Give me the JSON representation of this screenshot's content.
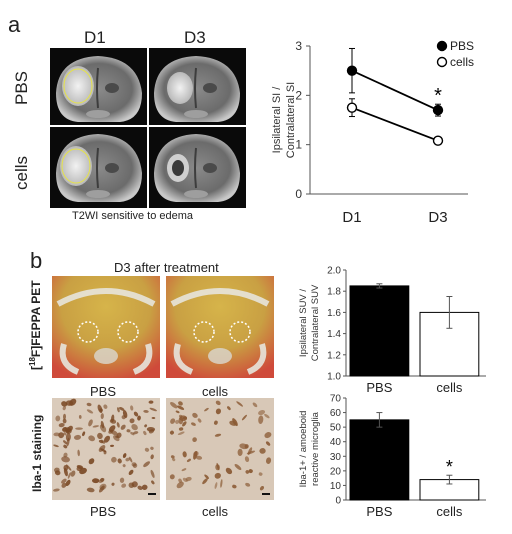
{
  "panel_a": {
    "letter": "a",
    "col_labels": [
      "D1",
      "D3"
    ],
    "row_labels": [
      "PBS",
      "cells"
    ],
    "caption": "T2WI sensitive to edema"
  },
  "panel_b": {
    "letter": "b",
    "pet_title": "D3 after treatment",
    "pet_side_label": "[18F]FEPPA PET",
    "pet_side_label_pre": "[",
    "pet_side_label_sup": "18",
    "pet_side_label_post": "F]FEPPA PET",
    "pet_labels": [
      "PBS",
      "cells"
    ],
    "iba_side_label": "Iba-1 staining",
    "iba_labels": [
      "PBS",
      "cells"
    ]
  },
  "chart_data": [
    {
      "type": "line",
      "x": [
        "D1",
        "D3"
      ],
      "series": [
        {
          "name": "PBS",
          "values": [
            2.5,
            1.7
          ],
          "errors": [
            0.45,
            0.12
          ],
          "marker": "filled"
        },
        {
          "name": "cells",
          "values": [
            1.75,
            1.08
          ],
          "errors": [
            0.18,
            0.07
          ],
          "marker": "open"
        }
      ],
      "ylabel": "Ipsilateral SI /\nContralateral SI",
      "ylabel_lines": [
        "Ipsilateral SI /",
        "Contralateral SI"
      ],
      "yticks": [
        0,
        1,
        2,
        3
      ],
      "ylim": [
        0,
        3
      ],
      "annotation": "*",
      "legend": "top-right"
    },
    {
      "type": "bar",
      "categories": [
        "PBS",
        "cells"
      ],
      "values": [
        1.85,
        1.6
      ],
      "errors": [
        0.02,
        0.15
      ],
      "ylabel_lines": [
        "Ipsilateral SUV /",
        "Contralateral SUV"
      ],
      "yticks": [
        "1.0",
        "1.2",
        "1.4",
        "1.6",
        "1.8",
        "2.0"
      ],
      "ylim": [
        1.0,
        2.0
      ]
    },
    {
      "type": "bar",
      "categories": [
        "PBS",
        "cells"
      ],
      "values": [
        55,
        14
      ],
      "errors": [
        5,
        3
      ],
      "ylabel_lines": [
        "Iba-1+ / amoeboid",
        "reactive microglia"
      ],
      "yticks": [
        0,
        10,
        20,
        30,
        40,
        50,
        60,
        70
      ],
      "ylim": [
        0,
        70
      ],
      "annotation": "*"
    }
  ],
  "colors": {
    "bar_pbs": "#000000",
    "bar_cells": "#ffffff",
    "mri_bg": "#0a0a0a",
    "stain_bg": "#d9c7b4"
  }
}
